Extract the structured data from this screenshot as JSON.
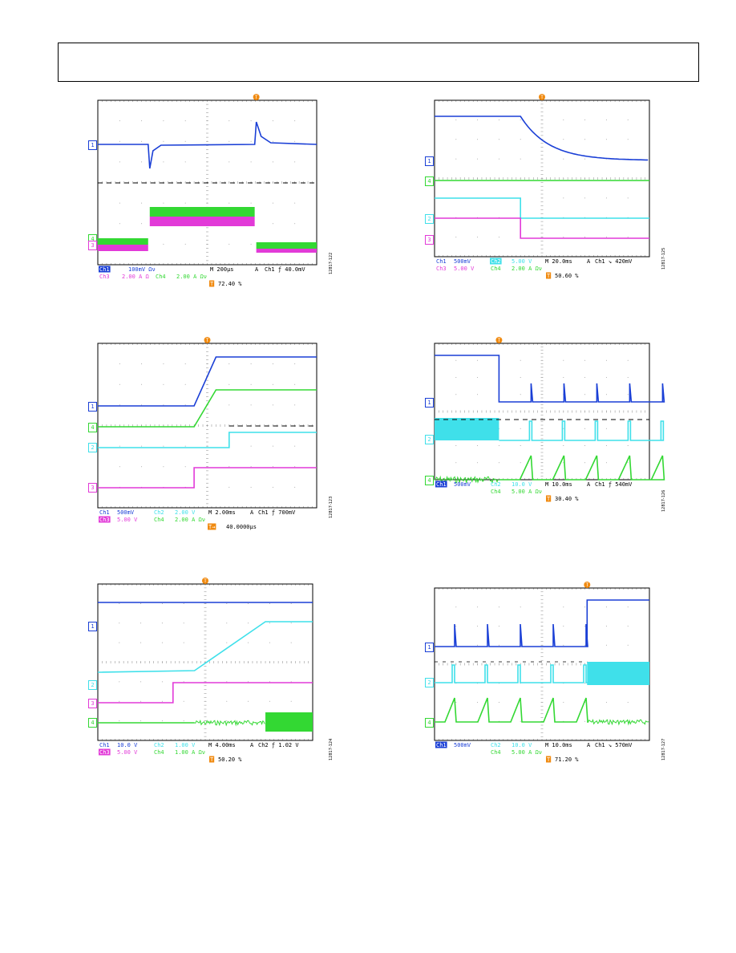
{
  "colors": {
    "ch1": "#1a3fd6",
    "ch2": "#3fe0ea",
    "ch3": "#e23ad8",
    "ch4": "#33d833",
    "trigger": "#f08a10",
    "grid": "#999999",
    "text": "#000000"
  },
  "scopes": [
    {
      "figure_id": "12817-122",
      "trigger_marker": "T",
      "channel_markers": [
        {
          "label": "1",
          "color": "ch1",
          "dx": 0,
          "dy": 180
        },
        {
          "label": "4",
          "color": "ch4",
          "dx": 0,
          "dy": 297
        },
        {
          "label": "3",
          "color": "ch3",
          "dx": 0,
          "dy": 305
        }
      ],
      "status": [
        [
          {
            "t": "Ch1",
            "c": "ch1",
            "hl": true,
            "x": 2
          },
          {
            "t": "100mV Ων",
            "c": "ch1",
            "x": 38
          },
          {
            "t": "M 200μs",
            "c": "text",
            "x": 140
          },
          {
            "t": "A",
            "c": "text",
            "x": 196
          },
          {
            "t": "Ch1  ƒ  40.0mV",
            "c": "text",
            "x": 208
          }
        ],
        [
          {
            "t": "Ch3",
            "c": "ch3",
            "x": 2
          },
          {
            "t": "2.00 A Ω",
            "c": "ch3",
            "x": 30
          },
          {
            "t": "Ch4",
            "c": "ch4",
            "x": 72
          },
          {
            "t": "2.00 A Ων",
            "c": "ch4",
            "x": 98
          }
        ],
        [
          {
            "t": "T",
            "c": "trigger",
            "hl": true,
            "x": 140
          },
          {
            "t": "72.40 %",
            "c": "text",
            "x": 150
          }
        ]
      ]
    },
    {
      "figure_id": "12817-125",
      "trigger_marker": "T",
      "channel_markers": [
        {
          "label": "1",
          "color": "ch1",
          "dx": 0,
          "dy": 200
        },
        {
          "label": "4",
          "color": "ch4",
          "dx": 0,
          "dy": 225
        },
        {
          "label": "2",
          "color": "ch2",
          "dx": 0,
          "dy": 272
        },
        {
          "label": "3",
          "color": "ch3",
          "dx": 0,
          "dy": 298
        }
      ],
      "status": [
        [
          {
            "t": "Ch1",
            "c": "ch1",
            "x": 2
          },
          {
            "t": "500mV",
            "c": "ch1",
            "x": 24
          },
          {
            "t": "Ch2",
            "c": "ch2",
            "hl": true,
            "x": 70
          },
          {
            "t": "5.00 V",
            "c": "ch2",
            "x": 96
          },
          {
            "t": "M 20.0ms",
            "c": "text",
            "x": 138
          },
          {
            "t": "A",
            "c": "text",
            "x": 190
          },
          {
            "t": "Ch1  ↘  420mV",
            "c": "text",
            "x": 200
          }
        ],
        [
          {
            "t": "Ch3",
            "c": "ch3",
            "x": 2
          },
          {
            "t": "5.00 V",
            "c": "ch3",
            "x": 24
          },
          {
            "t": "Ch4",
            "c": "ch4",
            "x": 70
          },
          {
            "t": "2.00 A Ων",
            "c": "ch4",
            "x": 96
          }
        ],
        [
          {
            "t": "T",
            "c": "trigger",
            "hl": true,
            "x": 140
          },
          {
            "t": "50.60 %",
            "c": "text",
            "x": 150
          }
        ]
      ]
    },
    {
      "figure_id": "12817-123",
      "trigger_marker": "T",
      "channel_markers": [
        {
          "label": "1",
          "color": "ch1",
          "dx": 0,
          "dy": 506
        },
        {
          "label": "4",
          "color": "ch4",
          "dx": 0,
          "dy": 532
        },
        {
          "label": "2",
          "color": "ch2",
          "dx": 0,
          "dy": 557
        },
        {
          "label": "3",
          "color": "ch3",
          "dx": 0,
          "dy": 607
        }
      ],
      "status": [
        [
          {
            "t": "Ch1",
            "c": "ch1",
            "x": 2
          },
          {
            "t": "500mV",
            "c": "ch1",
            "x": 24
          },
          {
            "t": "Ch2",
            "c": "ch2",
            "x": 70
          },
          {
            "t": "2.00 V",
            "c": "ch2",
            "x": 96
          },
          {
            "t": "M 2.00ms",
            "c": "text",
            "x": 138
          },
          {
            "t": "A",
            "c": "text",
            "x": 190
          },
          {
            "t": "Ch1  ƒ  700mV",
            "c": "text",
            "x": 200
          }
        ],
        [
          {
            "t": "Ch3",
            "c": "ch3",
            "hl": true,
            "x": 2
          },
          {
            "t": "5.00 V",
            "c": "ch3",
            "x": 24
          },
          {
            "t": "Ch4",
            "c": "ch4",
            "x": 70
          },
          {
            "t": "2.00 A Ων",
            "c": "ch4",
            "x": 96
          }
        ],
        [
          {
            "t": "T→",
            "c": "trigger",
            "hl": true,
            "x": 138
          },
          {
            "t": "40.0000μs",
            "c": "text",
            "x": 160
          }
        ]
      ]
    },
    {
      "figure_id": "12817-126",
      "trigger_marker": "T",
      "channel_markers": [
        {
          "label": "1",
          "color": "ch1",
          "dx": 0,
          "dy": 501
        },
        {
          "label": "2",
          "color": "ch2",
          "dx": 0,
          "dy": 547
        },
        {
          "label": "4",
          "color": "ch4",
          "dx": 0,
          "dy": 598
        }
      ],
      "status": [
        [
          {
            "t": "Ch1",
            "c": "ch1",
            "hl": true,
            "x": 2
          },
          {
            "t": "500mV",
            "c": "ch1",
            "x": 24
          },
          {
            "t": "Ch2",
            "c": "ch2",
            "x": 70
          },
          {
            "t": "10.0 V",
            "c": "ch2",
            "x": 96
          },
          {
            "t": "M 10.0ms",
            "c": "text",
            "x": 138
          },
          {
            "t": "A",
            "c": "text",
            "x": 190
          },
          {
            "t": "Ch1  ƒ  540mV",
            "c": "text",
            "x": 200
          }
        ],
        [
          {
            "t": "Ch4",
            "c": "ch4",
            "x": 70
          },
          {
            "t": "5.00 A Ων",
            "c": "ch4",
            "x": 96
          }
        ],
        [
          {
            "t": "T",
            "c": "trigger",
            "hl": true,
            "x": 140
          },
          {
            "t": "30.40 %",
            "c": "text",
            "x": 150
          }
        ]
      ]
    },
    {
      "figure_id": "12817-124",
      "trigger_marker": "T",
      "channel_markers": [
        {
          "label": "1",
          "color": "ch1",
          "dx": 0,
          "dy": 780
        },
        {
          "label": "2",
          "color": "ch2",
          "dx": 0,
          "dy": 853
        },
        {
          "label": "3",
          "color": "ch3",
          "dx": 0,
          "dy": 876
        },
        {
          "label": "4",
          "color": "ch4",
          "dx": 0,
          "dy": 900
        }
      ],
      "status": [
        [
          {
            "t": "Ch1",
            "c": "ch1",
            "x": 2
          },
          {
            "t": "10.0 V",
            "c": "ch1",
            "x": 24
          },
          {
            "t": "Ch2",
            "c": "ch2",
            "x": 70
          },
          {
            "t": "1.00 V",
            "c": "ch2",
            "x": 96
          },
          {
            "t": "M 4.00ms",
            "c": "text",
            "x": 138
          },
          {
            "t": "A",
            "c": "text",
            "x": 190
          },
          {
            "t": "Ch2  ƒ  1.02 V",
            "c": "text",
            "x": 200
          }
        ],
        [
          {
            "t": "Ch3",
            "c": "ch3",
            "hl": true,
            "x": 2
          },
          {
            "t": "5.00 V",
            "c": "ch3",
            "x": 24
          },
          {
            "t": "Ch4",
            "c": "ch4",
            "x": 70
          },
          {
            "t": "1.00 A Ων",
            "c": "ch4",
            "x": 96
          }
        ],
        [
          {
            "t": "T",
            "c": "trigger",
            "hl": true,
            "x": 140
          },
          {
            "t": "50.20 %",
            "c": "text",
            "x": 150
          }
        ]
      ]
    },
    {
      "figure_id": "12817-127",
      "trigger_marker": "T",
      "channel_markers": [
        {
          "label": "1",
          "color": "ch1",
          "dx": 0,
          "dy": 806
        },
        {
          "label": "2",
          "color": "ch2",
          "dx": 0,
          "dy": 850
        },
        {
          "label": "4",
          "color": "ch4",
          "dx": 0,
          "dy": 900
        }
      ],
      "status": [
        [
          {
            "t": "Ch1",
            "c": "ch1",
            "hl": true,
            "x": 2
          },
          {
            "t": "500mV",
            "c": "ch1",
            "x": 24
          },
          {
            "t": "Ch2",
            "c": "ch2",
            "x": 70
          },
          {
            "t": "10.0 V",
            "c": "ch2",
            "x": 96
          },
          {
            "t": "M 10.0ms",
            "c": "text",
            "x": 138
          },
          {
            "t": "A",
            "c": "text",
            "x": 190
          },
          {
            "t": "Ch1  ↘  570mV",
            "c": "text",
            "x": 200
          }
        ],
        [
          {
            "t": "Ch4",
            "c": "ch4",
            "x": 70
          },
          {
            "t": "5.00 A Ων",
            "c": "ch4",
            "x": 96
          }
        ],
        [
          {
            "t": "T",
            "c": "trigger",
            "hl": true,
            "x": 140
          },
          {
            "t": "71.20 %",
            "c": "text",
            "x": 150
          }
        ]
      ]
    }
  ],
  "chart_data": [
    {
      "type": "line",
      "title": "",
      "xlabel": "",
      "ylabel": "",
      "grid": true,
      "series": [
        {
          "channel": "Ch1",
          "shape": "flat with negative spike at 25% and positive spike at 72.4%"
        },
        {
          "channel": "Ch4",
          "shape": "low, step high from 23% to 72.4%"
        },
        {
          "channel": "Ch3",
          "shape": "low, step high from 23% to 72.4%"
        }
      ]
    },
    {
      "type": "line",
      "title": "",
      "xlabel": "",
      "ylabel": "",
      "grid": true,
      "series": [
        {
          "channel": "Ch1",
          "shape": "high until 40%, exponential decay to lower level"
        },
        {
          "channel": "Ch4",
          "shape": "flat"
        },
        {
          "channel": "Ch2",
          "shape": "high until 40%, steps down"
        },
        {
          "channel": "Ch3",
          "shape": "high until 40%, steps down"
        }
      ]
    },
    {
      "type": "line",
      "title": "",
      "xlabel": "",
      "ylabel": "",
      "grid": true,
      "series": [
        {
          "channel": "Ch1",
          "shape": "low, ramps up at 44-54%, then flat high"
        },
        {
          "channel": "Ch4",
          "shape": "low, ramps up at 44-54%, then flat high"
        },
        {
          "channel": "Ch2",
          "shape": "flat, drops at 60%"
        },
        {
          "channel": "Ch3",
          "shape": "low, steps up at 44%"
        }
      ]
    },
    {
      "type": "line",
      "title": "",
      "xlabel": "",
      "ylabel": "",
      "grid": true,
      "series": [
        {
          "channel": "Ch1",
          "shape": "high until 30%, then low with periodic spikes"
        },
        {
          "channel": "Ch2",
          "shape": "dense switching until 30%, then periodic pulses"
        },
        {
          "channel": "Ch4",
          "shape": "noisy until 30%, then periodic ramps"
        }
      ]
    },
    {
      "type": "line",
      "title": "",
      "xlabel": "",
      "ylabel": "",
      "grid": true,
      "series": [
        {
          "channel": "Ch1",
          "shape": "flat"
        },
        {
          "channel": "Ch2",
          "shape": "flat, ramps up from 45% to 75%"
        },
        {
          "channel": "Ch3",
          "shape": "low, steps up at 35%"
        },
        {
          "channel": "Ch4",
          "shape": "flat, noisy from 78%"
        }
      ]
    },
    {
      "type": "line",
      "title": "",
      "xlabel": "",
      "ylabel": "",
      "grid": true,
      "series": [
        {
          "channel": "Ch1",
          "shape": "low with periodic spikes, steps high at 71%"
        },
        {
          "channel": "Ch2",
          "shape": "periodic pulses, dense switching from 71%"
        },
        {
          "channel": "Ch4",
          "shape": "periodic ramps, noisy from 71%"
        }
      ]
    }
  ]
}
